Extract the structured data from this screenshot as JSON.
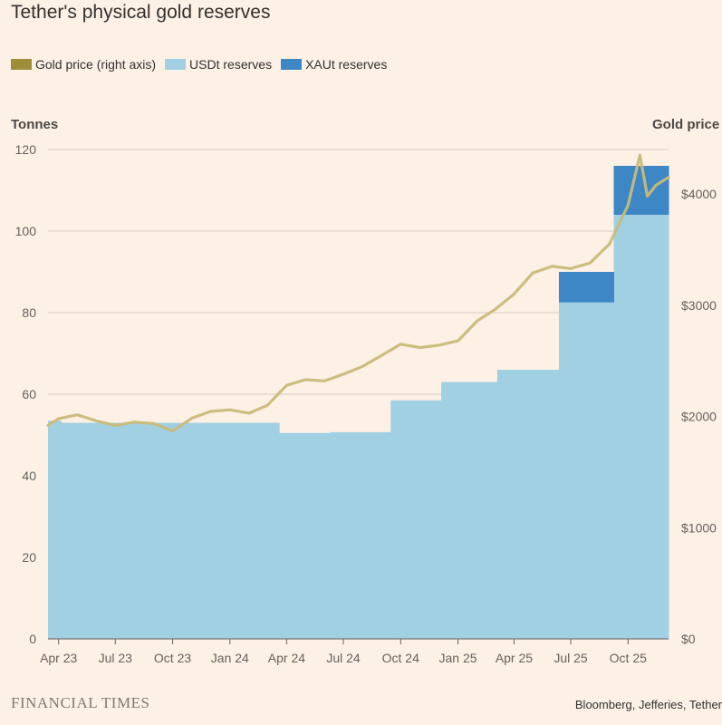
{
  "title": "Tether's physical gold reserves",
  "legend": [
    {
      "label": "Gold price (right axis)",
      "color": "#9E8E3A"
    },
    {
      "label": "USDt reserves",
      "color": "#A2D0E3"
    },
    {
      "label": "XAUt reserves",
      "color": "#3E87C6"
    }
  ],
  "left_axis_title": "Tonnes",
  "right_axis_title": "Gold price",
  "source": "Bloomberg, Jefferies, Tether",
  "publisher": "FINANCIAL TIMES",
  "colors": {
    "background": "#FDF1E6",
    "gridline": "#D9CCC1",
    "usdt": "#A2D0E3",
    "xaut": "#3E87C6",
    "gold": "#C9BA78"
  },
  "chart_data": {
    "type": "area",
    "title": "Tether's physical gold reserves",
    "ylabel": "Tonnes",
    "y2label": "Gold price",
    "ylim": [
      0,
      120
    ],
    "y2lim": [
      0,
      4400
    ],
    "xlim": [
      "2023-03-15",
      "2025-12-05"
    ],
    "y_ticks": [
      0,
      20,
      40,
      60,
      80,
      100,
      120
    ],
    "y2_ticks": [
      {
        "value": 0,
        "label": "$0"
      },
      {
        "value": 1000,
        "label": "$1000"
      },
      {
        "value": 2000,
        "label": "$2000"
      },
      {
        "value": 3000,
        "label": "$3000"
      },
      {
        "value": 4000,
        "label": "$4000"
      }
    ],
    "x_ticks": [
      {
        "date": "2023-04-01",
        "label": "Apr 23"
      },
      {
        "date": "2023-07-01",
        "label": "Jul 23"
      },
      {
        "date": "2023-10-01",
        "label": "Oct 23"
      },
      {
        "date": "2024-01-01",
        "label": "Jan 24"
      },
      {
        "date": "2024-04-01",
        "label": "Apr 24"
      },
      {
        "date": "2024-07-01",
        "label": "Jul 24"
      },
      {
        "date": "2024-10-01",
        "label": "Oct 24"
      },
      {
        "date": "2025-01-01",
        "label": "Jan 25"
      },
      {
        "date": "2025-04-01",
        "label": "Apr 25"
      },
      {
        "date": "2025-07-01",
        "label": "Jul 25"
      },
      {
        "date": "2025-10-01",
        "label": "Oct 25"
      }
    ],
    "grid": true,
    "legend_position": "top-left",
    "series": [
      {
        "name": "USDt reserves",
        "kind": "step-area",
        "axis": "left",
        "steps": [
          {
            "start": "2023-03-15",
            "value": 53.5
          },
          {
            "start": "2023-04-05",
            "value": 53.0
          },
          {
            "start": "2024-03-20",
            "value": 50.5
          },
          {
            "start": "2024-06-10",
            "value": 50.7
          },
          {
            "start": "2024-09-15",
            "value": 58.5
          },
          {
            "start": "2024-12-05",
            "value": 63.0
          },
          {
            "start": "2025-03-05",
            "value": 66.0
          },
          {
            "start": "2025-06-12",
            "value": 82.5
          },
          {
            "start": "2025-09-08",
            "value": 104.0
          }
        ],
        "end": "2025-12-05"
      },
      {
        "name": "XAUt reserves",
        "kind": "stacked-step-area",
        "axis": "left",
        "steps": [
          {
            "start": "2025-06-12",
            "value": 7.5
          },
          {
            "start": "2025-09-08",
            "value": 12.0
          }
        ],
        "end": "2025-12-05"
      },
      {
        "name": "Gold price (right axis)",
        "kind": "line",
        "axis": "right",
        "points": [
          {
            "date": "2023-03-15",
            "value": 1920
          },
          {
            "date": "2023-04-01",
            "value": 1980
          },
          {
            "date": "2023-05-01",
            "value": 2015
          },
          {
            "date": "2023-06-01",
            "value": 1960
          },
          {
            "date": "2023-07-01",
            "value": 1920
          },
          {
            "date": "2023-08-01",
            "value": 1950
          },
          {
            "date": "2023-09-01",
            "value": 1935
          },
          {
            "date": "2023-10-01",
            "value": 1870
          },
          {
            "date": "2023-11-01",
            "value": 1985
          },
          {
            "date": "2023-12-01",
            "value": 2045
          },
          {
            "date": "2024-01-01",
            "value": 2060
          },
          {
            "date": "2024-02-01",
            "value": 2030
          },
          {
            "date": "2024-03-01",
            "value": 2100
          },
          {
            "date": "2024-04-01",
            "value": 2280
          },
          {
            "date": "2024-05-01",
            "value": 2330
          },
          {
            "date": "2024-06-01",
            "value": 2320
          },
          {
            "date": "2024-07-01",
            "value": 2380
          },
          {
            "date": "2024-08-01",
            "value": 2450
          },
          {
            "date": "2024-09-01",
            "value": 2550
          },
          {
            "date": "2024-10-01",
            "value": 2650
          },
          {
            "date": "2024-11-01",
            "value": 2620
          },
          {
            "date": "2024-12-01",
            "value": 2640
          },
          {
            "date": "2025-01-01",
            "value": 2680
          },
          {
            "date": "2025-02-01",
            "value": 2860
          },
          {
            "date": "2025-03-01",
            "value": 2960
          },
          {
            "date": "2025-04-01",
            "value": 3100
          },
          {
            "date": "2025-05-01",
            "value": 3290
          },
          {
            "date": "2025-06-01",
            "value": 3350
          },
          {
            "date": "2025-07-01",
            "value": 3330
          },
          {
            "date": "2025-08-01",
            "value": 3380
          },
          {
            "date": "2025-09-01",
            "value": 3550
          },
          {
            "date": "2025-10-01",
            "value": 3900
          },
          {
            "date": "2025-10-20",
            "value": 4350
          },
          {
            "date": "2025-11-01",
            "value": 3980
          },
          {
            "date": "2025-11-15",
            "value": 4080
          },
          {
            "date": "2025-12-05",
            "value": 4150
          }
        ]
      }
    ]
  }
}
